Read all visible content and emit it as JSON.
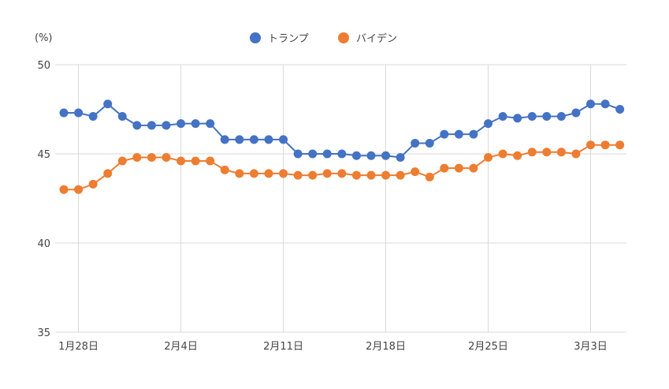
{
  "chart_data": {
    "type": "line",
    "title": "",
    "ylabel": "(%)",
    "xlabel": "",
    "ylim": [
      35,
      50
    ],
    "yticks": [
      35,
      40,
      45,
      50
    ],
    "grid": true,
    "legend_position": "top-center",
    "x_start": "1月27日",
    "x_end": "3月5日",
    "xtick_labels": [
      {
        "index": 1,
        "label": "1月28日"
      },
      {
        "index": 8,
        "label": "2月4日"
      },
      {
        "index": 15,
        "label": "2月11日"
      },
      {
        "index": 22,
        "label": "2月18日"
      },
      {
        "index": 29,
        "label": "2月25日"
      },
      {
        "index": 36,
        "label": "3月3日"
      }
    ],
    "series": [
      {
        "name": "トランプ",
        "color": "#4472c4",
        "values": [
          47.3,
          47.3,
          47.1,
          47.8,
          47.1,
          46.6,
          46.6,
          46.6,
          46.7,
          46.7,
          46.7,
          45.8,
          45.8,
          45.8,
          45.8,
          45.8,
          45.0,
          45.0,
          45.0,
          45.0,
          44.9,
          44.9,
          44.9,
          44.8,
          45.6,
          45.6,
          46.1,
          46.1,
          46.1,
          46.7,
          47.1,
          47.0,
          47.1,
          47.1,
          47.1,
          47.3,
          47.8,
          47.8,
          47.5
        ]
      },
      {
        "name": "バイデン",
        "color": "#ed7d31",
        "values": [
          43.0,
          43.0,
          43.3,
          43.9,
          44.6,
          44.8,
          44.8,
          44.8,
          44.6,
          44.6,
          44.6,
          44.1,
          43.9,
          43.9,
          43.9,
          43.9,
          43.8,
          43.8,
          43.9,
          43.9,
          43.8,
          43.8,
          43.8,
          43.8,
          44.0,
          43.7,
          44.2,
          44.2,
          44.2,
          44.8,
          45.0,
          44.9,
          45.1,
          45.1,
          45.1,
          45.0,
          45.5,
          45.5,
          45.5
        ]
      }
    ]
  }
}
